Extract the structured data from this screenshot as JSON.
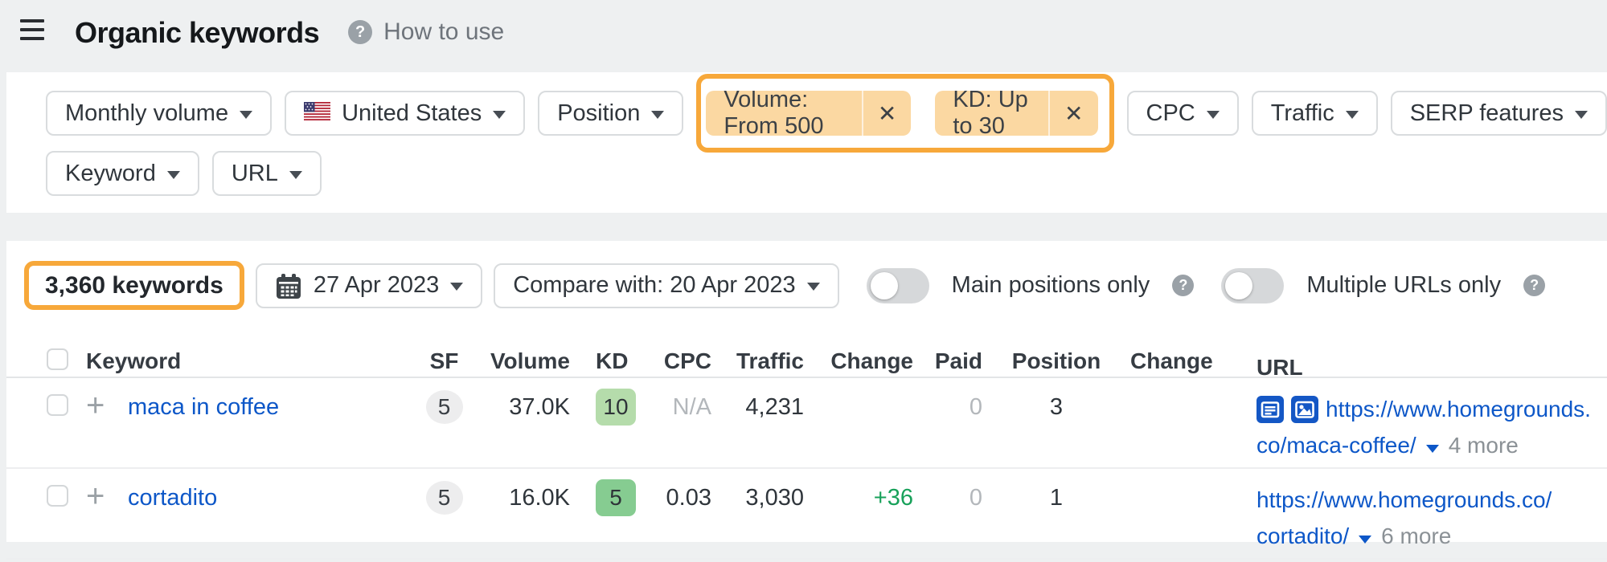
{
  "header": {
    "title": "Organic keywords",
    "help_label": "How to use"
  },
  "filters": {
    "monthly_volume": "Monthly volume",
    "country": "United States",
    "position": "Position",
    "active_chips": [
      {
        "label": "Volume: From 500"
      },
      {
        "label": "KD: Up to 30"
      }
    ],
    "cpc": "CPC",
    "traffic": "Traffic",
    "serp_features": "SERP features",
    "keyword": "Keyword",
    "url": "URL"
  },
  "toolbar": {
    "keywords_count": "3,360 keywords",
    "date": "27 Apr 2023",
    "compare_label": "Compare with: 20 Apr 2023",
    "main_positions_label": "Main positions only",
    "multiple_urls_label": "Multiple URLs only"
  },
  "table": {
    "columns": [
      "Keyword",
      "SF",
      "Volume",
      "KD",
      "CPC",
      "Traffic",
      "Change",
      "Paid",
      "Position",
      "Change",
      "URL"
    ],
    "rows": [
      {
        "keyword": "maca in coffee",
        "sf": "5",
        "volume": "37.0K",
        "kd": "10",
        "kd_color": "#b5dcab",
        "cpc": "N/A",
        "traffic": "4,231",
        "change": "",
        "paid": "0",
        "position": "3",
        "change2": "",
        "serp_icons": [
          "featured-snippet",
          "image-pack"
        ],
        "url_line1": "https://www.homegrounds.",
        "url_line2": "co/maca-coffee/",
        "more_label": "4 more"
      },
      {
        "keyword": "cortadito",
        "sf": "5",
        "volume": "16.0K",
        "kd": "5",
        "kd_color": "#86cc91",
        "cpc": "0.03",
        "traffic": "3,030",
        "change": "+36",
        "paid": "0",
        "position": "1",
        "change2": "",
        "serp_icons": [],
        "url_line1": "https://www.homegrounds.co/",
        "url_line2": "cortadito/",
        "more_label": "6 more"
      }
    ]
  },
  "colors": {
    "annotation_orange": "#f7a83a",
    "chip_bg": "#fbd8a2",
    "link_blue": "#0d57c8",
    "change_green": "#18a15a",
    "icon_blue": "#1457c5"
  }
}
